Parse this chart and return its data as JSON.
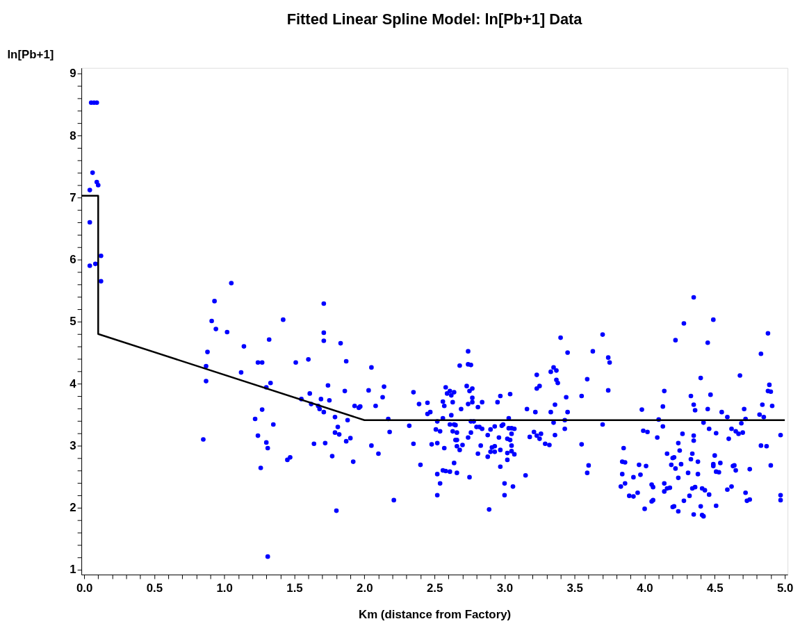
{
  "chart_data": {
    "type": "scatter",
    "title": "Fitted Linear Spline Model:  ln[Pb+1] Data",
    "xlabel": "Km (distance from Factory)",
    "ylabel": "ln[Pb+1]",
    "xlim": [
      -0.02,
      5.02
    ],
    "ylim": [
      0.92,
      9.09
    ],
    "xticks": [
      {
        "value": 0,
        "label": "0.0"
      },
      {
        "value": 0.1,
        "label": null
      },
      {
        "value": 0.2,
        "label": null
      },
      {
        "value": 0.3,
        "label": null
      },
      {
        "value": 0.4,
        "label": null
      },
      {
        "value": 0.5,
        "label": "0.5"
      },
      {
        "value": 0.6,
        "label": null
      },
      {
        "value": 0.7,
        "label": null
      },
      {
        "value": 0.8,
        "label": null
      },
      {
        "value": 0.9,
        "label": null
      },
      {
        "value": 1,
        "label": "1.0"
      },
      {
        "value": 1.1,
        "label": null
      },
      {
        "value": 1.2,
        "label": null
      },
      {
        "value": 1.3,
        "label": null
      },
      {
        "value": 1.4,
        "label": null
      },
      {
        "value": 1.5,
        "label": "1.5"
      },
      {
        "value": 1.6,
        "label": null
      },
      {
        "value": 1.7,
        "label": null
      },
      {
        "value": 1.8,
        "label": null
      },
      {
        "value": 1.9,
        "label": null
      },
      {
        "value": 2,
        "label": "2.0"
      },
      {
        "value": 2.1,
        "label": null
      },
      {
        "value": 2.2,
        "label": null
      },
      {
        "value": 2.3,
        "label": null
      },
      {
        "value": 2.4,
        "label": null
      },
      {
        "value": 2.5,
        "label": "2.5"
      },
      {
        "value": 2.6,
        "label": null
      },
      {
        "value": 2.7,
        "label": null
      },
      {
        "value": 2.8,
        "label": null
      },
      {
        "value": 2.9,
        "label": null
      },
      {
        "value": 3,
        "label": "3.0"
      },
      {
        "value": 3.1,
        "label": null
      },
      {
        "value": 3.2,
        "label": null
      },
      {
        "value": 3.3,
        "label": null
      },
      {
        "value": 3.4,
        "label": null
      },
      {
        "value": 3.5,
        "label": "3.5"
      },
      {
        "value": 3.6,
        "label": null
      },
      {
        "value": 3.7,
        "label": null
      },
      {
        "value": 3.8,
        "label": null
      },
      {
        "value": 3.9,
        "label": null
      },
      {
        "value": 4,
        "label": "4.0"
      },
      {
        "value": 4.1,
        "label": null
      },
      {
        "value": 4.2,
        "label": null
      },
      {
        "value": 4.3,
        "label": null
      },
      {
        "value": 4.4,
        "label": null
      },
      {
        "value": 4.5,
        "label": "4.5"
      },
      {
        "value": 4.6,
        "label": null
      },
      {
        "value": 4.7,
        "label": null
      },
      {
        "value": 4.8,
        "label": null
      },
      {
        "value": 4.9,
        "label": null
      },
      {
        "value": 5,
        "label": "5.0"
      }
    ],
    "yticks": [
      1,
      {
        "value": 1.2,
        "label": null
      },
      {
        "value": 1.4,
        "label": null
      },
      {
        "value": 1.6,
        "label": null
      },
      {
        "value": 1.8,
        "label": null
      },
      2,
      {
        "value": 2.2,
        "label": null
      },
      {
        "value": 2.4,
        "label": null
      },
      {
        "value": 2.6,
        "label": null
      },
      {
        "value": 2.8,
        "label": null
      },
      3,
      {
        "value": 3.2,
        "label": null
      },
      {
        "value": 3.4,
        "label": null
      },
      {
        "value": 3.6,
        "label": null
      },
      {
        "value": 3.8,
        "label": null
      },
      4,
      {
        "value": 4.2,
        "label": null
      },
      {
        "value": 4.4,
        "label": null
      },
      {
        "value": 4.6,
        "label": null
      },
      {
        "value": 4.8,
        "label": null
      },
      5,
      {
        "value": 5.2,
        "label": null
      },
      {
        "value": 5.4,
        "label": null
      },
      {
        "value": 5.6,
        "label": null
      },
      {
        "value": 5.8,
        "label": null
      },
      6,
      {
        "value": 6.2,
        "label": null
      },
      {
        "value": 6.4,
        "label": null
      },
      {
        "value": 6.6,
        "label": null
      },
      {
        "value": 6.8,
        "label": null
      },
      7,
      {
        "value": 7.2,
        "label": null
      },
      {
        "value": 7.4,
        "label": null
      },
      {
        "value": 7.6,
        "label": null
      },
      {
        "value": 7.8,
        "label": null
      },
      8,
      {
        "value": 8.2,
        "label": null
      },
      {
        "value": 8.4,
        "label": null
      },
      {
        "value": 8.6,
        "label": null
      },
      {
        "value": 8.8,
        "label": null
      },
      9
    ],
    "grid": false,
    "series": [
      {
        "type": "scatter",
        "marker": "circle",
        "color": "#0000ff",
        "x": [
          0.05,
          0.07,
          0.09,
          0.06,
          0.09,
          0.1,
          0.04,
          0.04,
          0.12,
          0.04,
          0.08,
          0.12,
          0.85,
          0.87,
          0.87,
          0.88,
          0.91,
          0.93,
          0.94,
          1.02,
          1.05,
          1.12,
          1.14,
          1.22,
          1.24,
          1.24,
          1.26,
          1.27,
          1.27,
          1.3,
          1.3,
          1.31,
          1.31,
          1.32,
          1.33,
          1.35,
          1.42,
          1.45,
          1.47,
          1.51,
          1.55,
          1.6,
          1.61,
          1.62,
          1.64,
          1.67,
          1.68,
          1.69,
          1.71,
          1.71,
          1.71,
          1.71,
          1.72,
          1.74,
          1.75,
          1.77,
          1.79,
          1.79,
          1.8,
          1.81,
          1.82,
          1.83,
          1.86,
          1.87,
          1.87,
          1.88,
          1.9,
          1.92,
          1.93,
          1.96,
          1.97,
          2.03,
          2.05,
          2.05,
          2.08,
          2.1,
          2.13,
          2.14,
          2.17,
          2.21,
          2.18,
          2.32,
          2.35,
          2.35,
          2.39,
          2.4,
          2.45,
          2.45,
          2.47,
          2.48,
          2.52,
          2.51,
          2.52,
          2.52,
          2.54,
          2.52,
          2.54,
          2.56,
          2.57,
          2.57,
          2.58,
          2.56,
          2.58,
          2.61,
          2.59,
          2.61,
          2.64,
          2.62,
          2.63,
          2.56,
          2.62,
          2.61,
          2.64,
          2.65,
          2.63,
          2.66,
          2.65,
          2.66,
          2.66,
          2.68,
          2.7,
          2.64,
          2.66,
          2.68,
          2.69,
          2.74,
          2.74,
          2.76,
          2.73,
          2.77,
          2.75,
          2.77,
          2.74,
          2.77,
          2.81,
          2.84,
          2.76,
          2.78,
          2.8,
          2.82,
          2.84,
          2.76,
          2.74,
          2.83,
          2.81,
          2.75,
          2.88,
          2.9,
          2.93,
          2.91,
          2.93,
          2.9,
          2.93,
          2.88,
          2.97,
          2.97,
          2.89,
          3.0,
          3.0,
          3.06,
          2.95,
          2.97,
          3.04,
          2.98,
          2.99,
          3.03,
          2.96,
          3.03,
          3.05,
          3.07,
          3.05,
          3.02,
          3.04,
          3.02,
          3.05,
          3.07,
          3.05,
          3.02,
          3.15,
          3.16,
          3.22,
          3.18,
          3.21,
          3.23,
          3.25,
          3.26,
          3.29,
          3.32,
          3.23,
          3.23,
          3.25,
          3.33,
          3.35,
          3.37,
          3.37,
          3.38,
          3.4,
          3.45,
          3.33,
          3.36,
          3.44,
          3.45,
          3.35,
          3.43,
          3.43,
          3.36,
          3.63,
          3.59,
          3.55,
          3.55,
          3.6,
          3.59,
          3.7,
          3.74,
          3.75,
          3.74,
          3.7,
          3.85,
          3.84,
          3.86,
          3.84,
          3.86,
          3.83,
          3.89,
          3.92,
          3.92,
          3.96,
          3.97,
          3.95,
          4.0,
          3.98,
          3.99,
          4.02,
          4.01,
          4.05,
          4.06,
          4.06,
          4.05,
          4.09,
          4.1,
          4.13,
          4.13,
          4.14,
          4.14,
          4.16,
          4.14,
          4.18,
          4.16,
          4.19,
          4.2,
          4.21,
          4.22,
          4.22,
          4.24,
          4.24,
          4.25,
          4.26,
          4.21,
          4.2,
          4.24,
          4.27,
          4.28,
          4.28,
          4.31,
          4.32,
          4.33,
          4.33,
          4.35,
          4.36,
          4.35,
          4.35,
          4.35,
          4.34,
          4.38,
          4.38,
          4.34,
          4.36,
          4.35,
          4.4,
          4.4,
          4.41,
          4.43,
          4.46,
          4.42,
          4.42,
          4.41,
          4.45,
          4.45,
          4.47,
          4.46,
          4.49,
          4.51,
          4.5,
          4.49,
          4.49,
          4.51,
          4.53,
          4.54,
          4.51,
          4.55,
          4.59,
          4.6,
          4.62,
          4.65,
          4.67,
          4.7,
          4.69,
          4.68,
          4.71,
          4.72,
          4.63,
          4.65,
          4.64,
          4.59,
          4.62,
          4.72,
          4.73,
          4.75,
          4.75,
          4.83,
          4.88,
          4.89,
          4.88,
          4.9,
          4.84,
          4.91,
          4.82,
          4.85,
          4.83,
          4.87,
          4.9,
          4.97,
          4.97,
          4.97
        ],
        "values": [
          8.53,
          8.53,
          8.53,
          7.4,
          7.25,
          7.2,
          7.12,
          6.6,
          6.06,
          5.9,
          5.93,
          5.65,
          3.1,
          4.28,
          4.04,
          4.51,
          5.01,
          5.33,
          4.88,
          4.83,
          5.62,
          4.18,
          4.6,
          3.43,
          3.16,
          4.34,
          2.64,
          4.34,
          3.58,
          3.94,
          3.05,
          2.96,
          1.21,
          4.71,
          4.01,
          3.34,
          5.03,
          2.77,
          2.81,
          4.34,
          3.75,
          4.39,
          3.84,
          3.67,
          3.03,
          3.64,
          3.59,
          3.75,
          5.29,
          4.82,
          4.69,
          3.54,
          3.04,
          3.97,
          3.73,
          2.83,
          3.46,
          3.21,
          1.95,
          3.3,
          3.18,
          4.65,
          3.88,
          4.36,
          3.07,
          3.41,
          3.12,
          2.74,
          3.64,
          3.61,
          3.63,
          3.89,
          4.26,
          3.0,
          3.64,
          2.87,
          3.78,
          3.95,
          3.43,
          2.12,
          3.22,
          3.32,
          3.86,
          3.03,
          3.67,
          2.69,
          3.69,
          3.51,
          3.54,
          3.02,
          3.04,
          3.26,
          3.39,
          2.54,
          2.39,
          2.2,
          3.23,
          3.71,
          3.64,
          2.96,
          3.94,
          2.6,
          2.59,
          2.58,
          3.84,
          3.88,
          3.86,
          3.81,
          3.7,
          3.44,
          3.49,
          3.34,
          3.34,
          3.33,
          3.23,
          3.21,
          3.09,
          3.09,
          2.99,
          2.93,
          3.01,
          2.72,
          2.56,
          4.29,
          3.59,
          4.52,
          4.31,
          4.3,
          3.96,
          3.92,
          3.88,
          3.77,
          3.67,
          3.7,
          3.62,
          3.7,
          3.39,
          3.39,
          3.3,
          3.3,
          3.27,
          3.21,
          3.13,
          3.0,
          2.87,
          2.49,
          3.17,
          3.26,
          3.31,
          2.97,
          2.99,
          2.9,
          2.9,
          2.82,
          2.93,
          2.66,
          1.97,
          2.39,
          2.2,
          2.34,
          3.7,
          3.8,
          3.83,
          3.32,
          3.34,
          3.44,
          3.13,
          3.28,
          3.28,
          3.27,
          3.19,
          3.11,
          3.09,
          2.88,
          2.91,
          2.86,
          3.0,
          2.77,
          2.52,
          3.59,
          3.54,
          3.14,
          3.22,
          3.16,
          3.11,
          3.19,
          3.03,
          3.01,
          4.14,
          3.92,
          3.96,
          4.19,
          4.26,
          4.21,
          4.06,
          4.01,
          4.74,
          4.5,
          3.54,
          3.66,
          3.78,
          3.54,
          3.37,
          3.41,
          3.27,
          3.17,
          4.52,
          4.07,
          3.8,
          3.02,
          2.68,
          2.56,
          4.79,
          4.42,
          4.34,
          3.89,
          3.34,
          2.96,
          2.74,
          2.73,
          2.54,
          2.39,
          2.34,
          2.19,
          2.18,
          2.49,
          2.69,
          2.53,
          2.24,
          1.98,
          3.58,
          3.24,
          3.22,
          2.67,
          2.37,
          2.33,
          2.12,
          2.1,
          3.13,
          3.42,
          3.63,
          3.31,
          3.88,
          2.39,
          2.31,
          2.26,
          2.32,
          2.87,
          2.69,
          2.8,
          2.81,
          4.7,
          2.63,
          2.48,
          3.04,
          2.92,
          2.7,
          2.02,
          2.01,
          1.94,
          3.19,
          2.11,
          4.97,
          2.56,
          2.19,
          3.8,
          2.78,
          3.66,
          3.57,
          5.39,
          3.16,
          3.08,
          2.87,
          2.74,
          2.54,
          2.31,
          2.33,
          1.89,
          4.09,
          2.02,
          2.31,
          2.28,
          2.21,
          3.37,
          1.86,
          1.88,
          4.66,
          3.59,
          3.82,
          3.27,
          5.03,
          3.2,
          2.84,
          2.7,
          2.67,
          2.58,
          2.57,
          2.72,
          2.03,
          3.54,
          3.46,
          3.11,
          3.27,
          3.23,
          3.19,
          3.21,
          3.36,
          4.13,
          3.59,
          3.43,
          2.67,
          2.6,
          2.68,
          2.29,
          2.34,
          2.24,
          2.11,
          2.13,
          2.62,
          4.48,
          4.81,
          3.98,
          3.88,
          3.87,
          3.66,
          3.64,
          3.5,
          3.46,
          3.0,
          2.99,
          2.68,
          3.17,
          2.2,
          2.12
        ]
      },
      {
        "type": "line",
        "color": "#000000",
        "x": [
          -0.02,
          0.1,
          0.1,
          2.0,
          5.0
        ],
        "values": [
          7.03,
          7.03,
          4.8,
          3.41,
          3.41
        ]
      }
    ]
  }
}
